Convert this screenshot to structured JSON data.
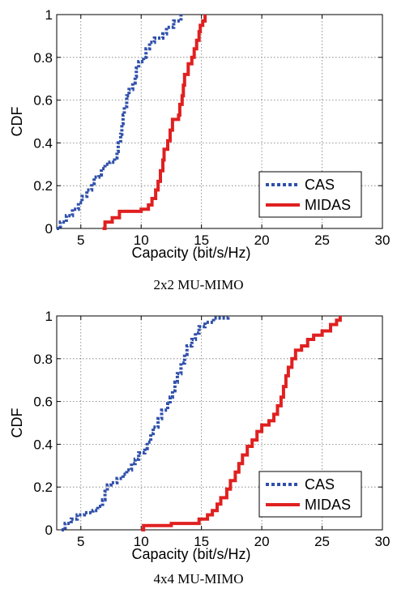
{
  "chart_data": [
    {
      "type": "line",
      "caption": "2x2 MU-MIMO",
      "xlabel": "Capacity (bit/s/Hz)",
      "ylabel": "CDF",
      "xlim": [
        3,
        30
      ],
      "ylim": [
        0,
        1
      ],
      "xticks": [
        "5",
        "10",
        "15",
        "20",
        "25",
        "30"
      ],
      "yticks": [
        "0",
        "0.2",
        "0.4",
        "0.6",
        "0.8",
        "1"
      ],
      "grid": true,
      "legend_position": "bottom-right",
      "series": [
        {
          "name": "CAS",
          "color": "#2f4faa",
          "style": "dotted",
          "points": [
            [
              3.0,
              0.0
            ],
            [
              3.3,
              0.03
            ],
            [
              3.8,
              0.06
            ],
            [
              4.3,
              0.09
            ],
            [
              4.8,
              0.12
            ],
            [
              5.1,
              0.15
            ],
            [
              5.5,
              0.18
            ],
            [
              5.9,
              0.21
            ],
            [
              6.1,
              0.24
            ],
            [
              6.5,
              0.25
            ],
            [
              6.7,
              0.28
            ],
            [
              7.0,
              0.3
            ],
            [
              7.4,
              0.31
            ],
            [
              7.8,
              0.33
            ],
            [
              8.0,
              0.36
            ],
            [
              8.1,
              0.4
            ],
            [
              8.3,
              0.44
            ],
            [
              8.4,
              0.49
            ],
            [
              8.5,
              0.53
            ],
            [
              8.6,
              0.57
            ],
            [
              8.8,
              0.62
            ],
            [
              9.0,
              0.65
            ],
            [
              9.3,
              0.68
            ],
            [
              9.5,
              0.71
            ],
            [
              9.6,
              0.75
            ],
            [
              9.8,
              0.78
            ],
            [
              10.2,
              0.8
            ],
            [
              10.4,
              0.84
            ],
            [
              10.7,
              0.87
            ],
            [
              11.1,
              0.89
            ],
            [
              11.8,
              0.91
            ],
            [
              12.1,
              0.94
            ],
            [
              12.7,
              0.97
            ],
            [
              13.3,
              1.0
            ]
          ]
        },
        {
          "name": "MIDAS",
          "color": "#e02020",
          "style": "solid",
          "points": [
            [
              6.8,
              0.0
            ],
            [
              7.0,
              0.03
            ],
            [
              7.6,
              0.05
            ],
            [
              8.2,
              0.08
            ],
            [
              10.0,
              0.09
            ],
            [
              10.6,
              0.11
            ],
            [
              10.9,
              0.14
            ],
            [
              11.2,
              0.18
            ],
            [
              11.4,
              0.22
            ],
            [
              11.6,
              0.27
            ],
            [
              11.8,
              0.32
            ],
            [
              11.9,
              0.37
            ],
            [
              12.2,
              0.41
            ],
            [
              12.4,
              0.46
            ],
            [
              12.6,
              0.51
            ],
            [
              13.1,
              0.53
            ],
            [
              13.2,
              0.58
            ],
            [
              13.4,
              0.62
            ],
            [
              13.5,
              0.67
            ],
            [
              13.6,
              0.72
            ],
            [
              13.9,
              0.77
            ],
            [
              14.2,
              0.8
            ],
            [
              14.4,
              0.84
            ],
            [
              14.6,
              0.88
            ],
            [
              14.8,
              0.92
            ],
            [
              14.9,
              0.95
            ],
            [
              15.1,
              0.97
            ],
            [
              15.3,
              1.0
            ]
          ]
        }
      ]
    },
    {
      "type": "line",
      "caption": "4x4 MU-MIMO",
      "xlabel": "Capacity (bit/s/Hz)",
      "ylabel": "CDF",
      "xlim": [
        3,
        30
      ],
      "ylim": [
        0,
        1
      ],
      "xticks": [
        "5",
        "10",
        "15",
        "20",
        "25",
        "30"
      ],
      "yticks": [
        "0",
        "0.2",
        "0.4",
        "0.6",
        "0.8",
        "1"
      ],
      "grid": true,
      "legend_position": "bottom-right",
      "series": [
        {
          "name": "CAS",
          "color": "#2f4faa",
          "style": "dotted",
          "points": [
            [
              3.4,
              0.0
            ],
            [
              3.7,
              0.03
            ],
            [
              4.2,
              0.05
            ],
            [
              4.7,
              0.07
            ],
            [
              5.3,
              0.08
            ],
            [
              6.0,
              0.09
            ],
            [
              6.4,
              0.11
            ],
            [
              6.8,
              0.14
            ],
            [
              7.0,
              0.18
            ],
            [
              7.2,
              0.21
            ],
            [
              7.5,
              0.22
            ],
            [
              8.0,
              0.24
            ],
            [
              8.5,
              0.26
            ],
            [
              8.8,
              0.28
            ],
            [
              9.2,
              0.31
            ],
            [
              9.5,
              0.33
            ],
            [
              9.8,
              0.36
            ],
            [
              10.3,
              0.38
            ],
            [
              10.5,
              0.41
            ],
            [
              10.8,
              0.45
            ],
            [
              11.0,
              0.48
            ],
            [
              11.4,
              0.52
            ],
            [
              11.7,
              0.56
            ],
            [
              12.2,
              0.59
            ],
            [
              12.4,
              0.62
            ],
            [
              12.6,
              0.65
            ],
            [
              12.8,
              0.69
            ],
            [
              13.0,
              0.73
            ],
            [
              13.3,
              0.78
            ],
            [
              13.6,
              0.82
            ],
            [
              13.8,
              0.86
            ],
            [
              14.2,
              0.89
            ],
            [
              14.5,
              0.92
            ],
            [
              14.8,
              0.95
            ],
            [
              15.3,
              0.97
            ],
            [
              16.0,
              0.99
            ],
            [
              17.2,
              1.0
            ]
          ]
        },
        {
          "name": "MIDAS",
          "color": "#e02020",
          "style": "solid",
          "points": [
            [
              10.0,
              0.0
            ],
            [
              10.2,
              0.02
            ],
            [
              12.5,
              0.03
            ],
            [
              14.8,
              0.05
            ],
            [
              15.5,
              0.07
            ],
            [
              15.9,
              0.09
            ],
            [
              16.3,
              0.12
            ],
            [
              16.6,
              0.15
            ],
            [
              17.1,
              0.19
            ],
            [
              17.4,
              0.23
            ],
            [
              17.8,
              0.27
            ],
            [
              18.1,
              0.31
            ],
            [
              18.4,
              0.35
            ],
            [
              18.8,
              0.39
            ],
            [
              19.2,
              0.42
            ],
            [
              19.6,
              0.46
            ],
            [
              20.0,
              0.49
            ],
            [
              20.6,
              0.51
            ],
            [
              21.0,
              0.54
            ],
            [
              21.3,
              0.58
            ],
            [
              21.6,
              0.62
            ],
            [
              21.8,
              0.67
            ],
            [
              22.0,
              0.72
            ],
            [
              22.2,
              0.76
            ],
            [
              22.5,
              0.8
            ],
            [
              22.8,
              0.84
            ],
            [
              23.3,
              0.86
            ],
            [
              23.8,
              0.89
            ],
            [
              24.3,
              0.91
            ],
            [
              25.0,
              0.93
            ],
            [
              25.7,
              0.96
            ],
            [
              26.2,
              0.98
            ],
            [
              26.5,
              1.0
            ]
          ]
        }
      ]
    }
  ]
}
